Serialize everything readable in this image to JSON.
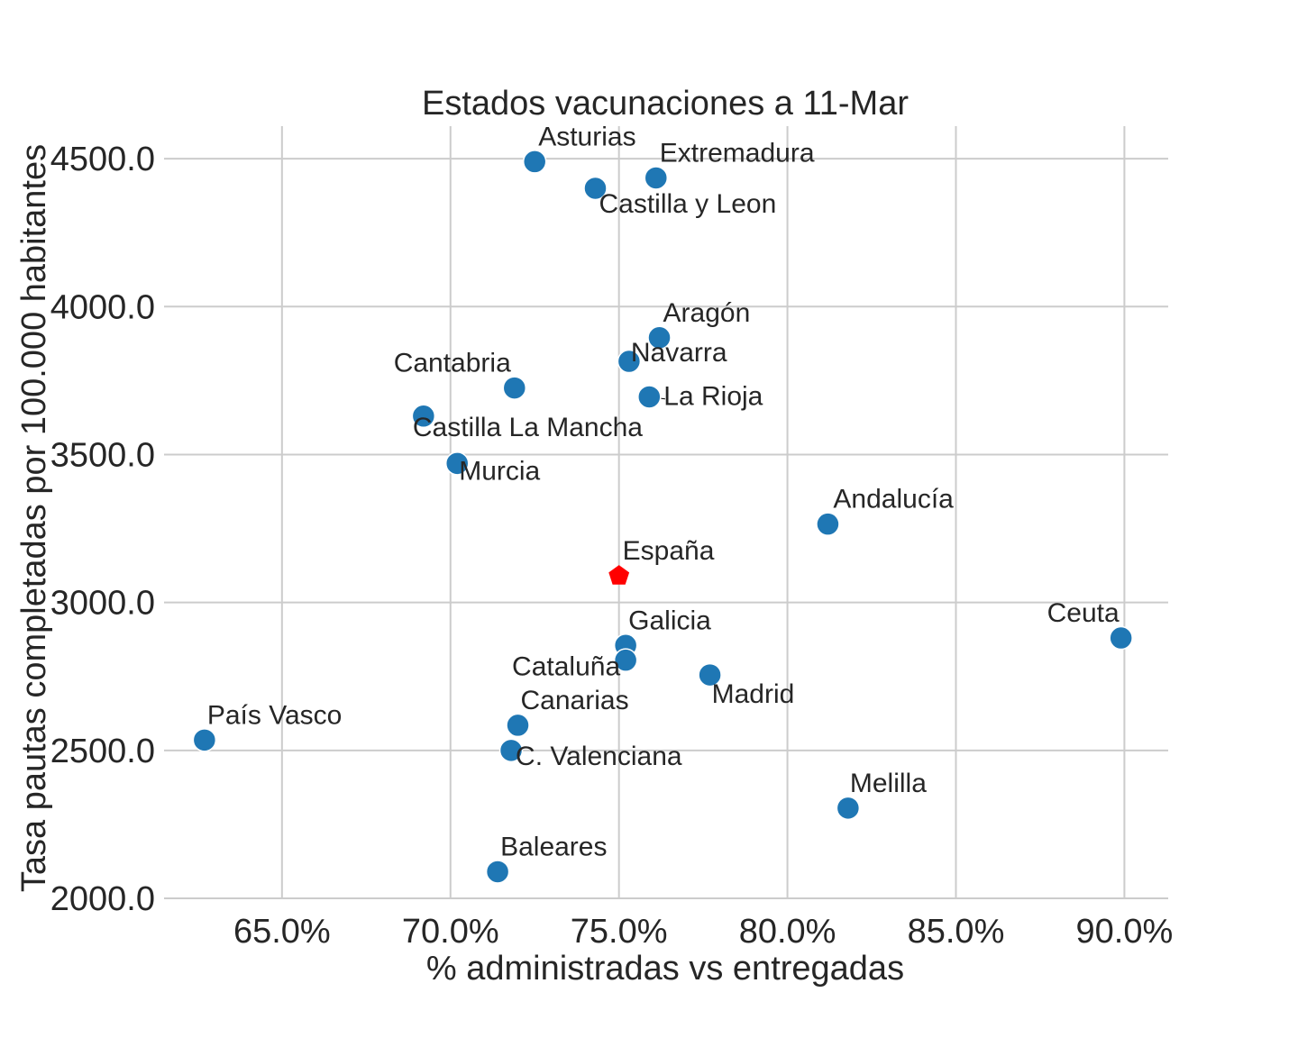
{
  "chart_data": {
    "type": "scatter",
    "title": "Estados vacunaciones a 11-Mar",
    "xlabel": "% administradas vs entregadas",
    "ylabel": "Tasa pautas completadas por 100.000 habitantes",
    "xlim": [
      61.5,
      91.3
    ],
    "ylim": [
      2000,
      4610
    ],
    "xticks": [
      65,
      70,
      75,
      80,
      85,
      90
    ],
    "xtick_labels": [
      "65.0%",
      "70.0%",
      "75.0%",
      "80.0%",
      "85.0%",
      "90.0%"
    ],
    "yticks": [
      2000,
      2500,
      3000,
      3500,
      4000,
      4500
    ],
    "ytick_labels": [
      "2000.0",
      "2500.0",
      "3000.0",
      "3500.0",
      "4000.0",
      "4500.0"
    ],
    "grid": true,
    "colors": {
      "points": "#1f77b4",
      "highlight": "#ff0000"
    },
    "points": [
      {
        "name": "Asturias",
        "x": 72.5,
        "y": 4490
      },
      {
        "name": "Extremadura",
        "x": 76.1,
        "y": 4435
      },
      {
        "name": "Castilla y Leon",
        "x": 74.3,
        "y": 4400
      },
      {
        "name": "Aragón",
        "x": 76.2,
        "y": 3895
      },
      {
        "name": "Navarra",
        "x": 75.3,
        "y": 3815
      },
      {
        "name": "Cantabria",
        "x": 71.9,
        "y": 3725
      },
      {
        "name": "La Rioja",
        "x": 75.9,
        "y": 3695
      },
      {
        "name": "Castilla La Mancha",
        "x": 69.2,
        "y": 3630
      },
      {
        "name": "Murcia",
        "x": 70.2,
        "y": 3470
      },
      {
        "name": "Andalucía",
        "x": 81.2,
        "y": 3265
      },
      {
        "name": "Ceuta",
        "x": 89.9,
        "y": 2880
      },
      {
        "name": "Galicia",
        "x": 75.2,
        "y": 2855
      },
      {
        "name": "Cataluña",
        "x": 75.2,
        "y": 2805
      },
      {
        "name": "Madrid",
        "x": 77.7,
        "y": 2755
      },
      {
        "name": "Canarias",
        "x": 72.0,
        "y": 2585
      },
      {
        "name": "País Vasco",
        "x": 62.7,
        "y": 2535
      },
      {
        "name": "C. Valenciana",
        "x": 71.8,
        "y": 2500
      },
      {
        "name": "Melilla",
        "x": 81.8,
        "y": 2305
      },
      {
        "name": "Baleares",
        "x": 71.4,
        "y": 2090
      }
    ],
    "highlight": {
      "name": "España",
      "x": 75.0,
      "y": 3090,
      "marker": "pentagon"
    }
  }
}
